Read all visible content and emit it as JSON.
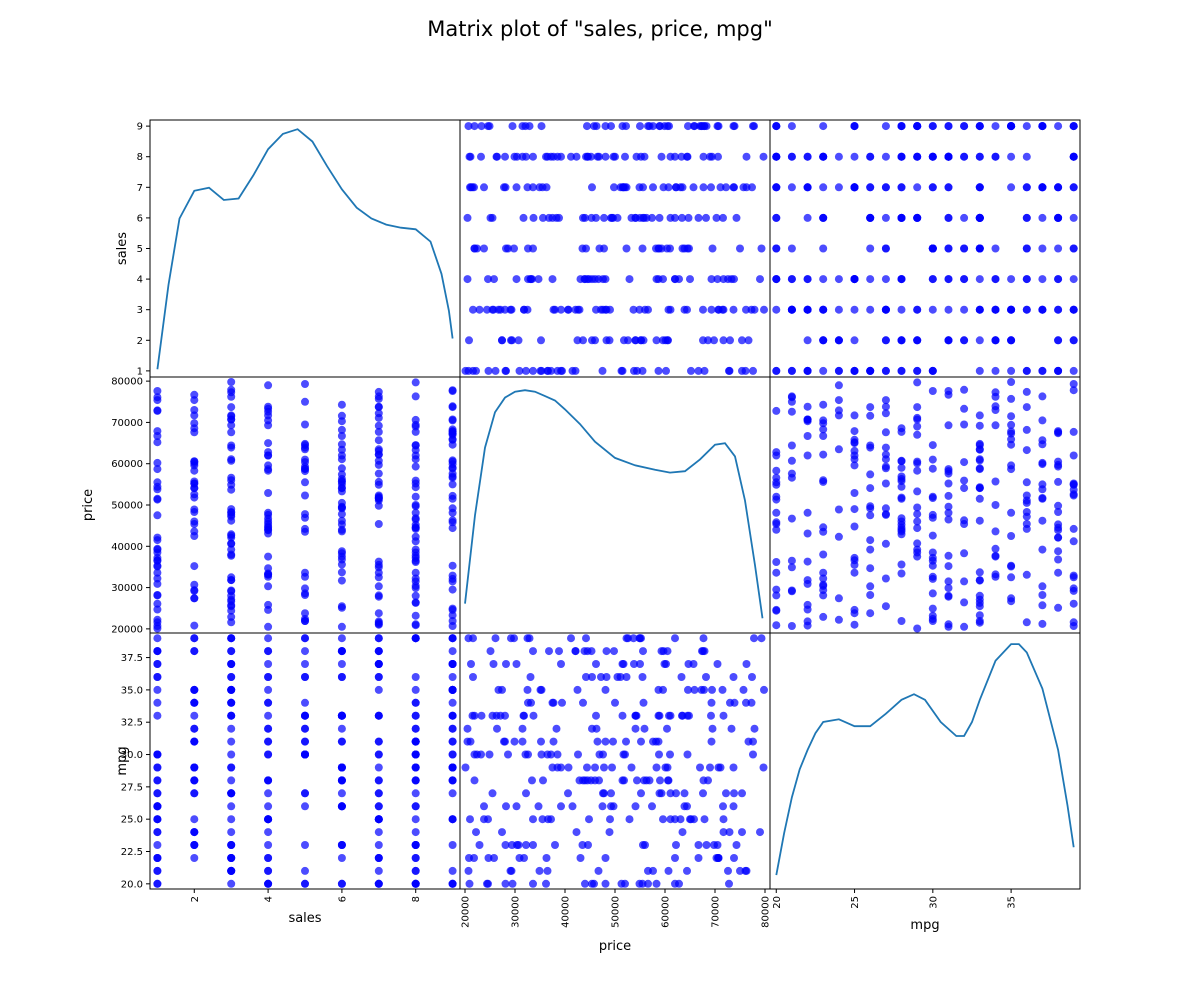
{
  "chart_data": {
    "type": "scatter_matrix",
    "title": "Matrix plot of \"sales, price, mpg\"",
    "variables": [
      "sales",
      "price",
      "mpg"
    ],
    "colors": {
      "points": "#0000ff",
      "kde": "#1f77b4",
      "frame": "#000000"
    },
    "point_alpha": 0.7,
    "grid": false,
    "legend": "none",
    "axes": {
      "sales": {
        "label": "sales",
        "range": [
          0.8,
          9.2
        ],
        "ticks": [
          1,
          2,
          3,
          4,
          5,
          6,
          7,
          8,
          9
        ],
        "bottom_ticks": [
          2,
          4,
          6,
          8
        ],
        "tick_labels": [
          "1",
          "2",
          "3",
          "4",
          "5",
          "6",
          "7",
          "8",
          "9"
        ],
        "bottom_tick_labels": [
          "2",
          "4",
          "6",
          "8"
        ]
      },
      "price": {
        "label": "price",
        "range": [
          19000,
          81000
        ],
        "ticks": [
          20000,
          30000,
          40000,
          50000,
          60000,
          70000,
          80000
        ],
        "tick_labels": [
          "20000",
          "30000",
          "40000",
          "50000",
          "60000",
          "70000",
          "80000"
        ]
      },
      "mpg": {
        "label": "mpg",
        "range": [
          19.6,
          39.4
        ],
        "ticks": [
          20.0,
          22.5,
          25.0,
          27.5,
          30.0,
          32.5,
          35.0,
          37.5
        ],
        "bottom_ticks": [
          20,
          25,
          30,
          35
        ],
        "tick_labels": [
          "20.0",
          "22.5",
          "25.0",
          "27.5",
          "30.0",
          "32.5",
          "35.0",
          "37.5"
        ],
        "bottom_tick_labels": [
          "20",
          "25",
          "30",
          "35"
        ]
      }
    },
    "diagonal_kde": {
      "sales": {
        "x": [
          1.0,
          1.3,
          1.6,
          2.0,
          2.4,
          2.8,
          3.2,
          3.6,
          4.0,
          4.4,
          4.8,
          5.2,
          5.6,
          6.0,
          6.4,
          6.8,
          7.2,
          7.6,
          8.0,
          8.4,
          8.7,
          8.9,
          9.0
        ],
        "y": [
          0.02,
          0.075,
          0.118,
          0.136,
          0.138,
          0.13,
          0.131,
          0.146,
          0.163,
          0.173,
          0.176,
          0.168,
          0.152,
          0.137,
          0.125,
          0.118,
          0.114,
          0.112,
          0.111,
          0.103,
          0.082,
          0.058,
          0.04
        ],
        "yrange": [
          0.015,
          0.182
        ]
      },
      "price": {
        "x": [
          20000,
          22000,
          24000,
          26000,
          28000,
          30000,
          32000,
          34000,
          36000,
          38000,
          40000,
          43000,
          46000,
          50000,
          54000,
          58000,
          61000,
          64000,
          67000,
          70000,
          72000,
          74000,
          76000,
          78000,
          79500
        ],
        "y": [
          0.25,
          0.55,
          0.78,
          0.9,
          0.95,
          0.97,
          0.975,
          0.97,
          0.955,
          0.94,
          0.91,
          0.86,
          0.8,
          0.745,
          0.72,
          0.705,
          0.695,
          0.7,
          0.74,
          0.79,
          0.795,
          0.75,
          0.6,
          0.38,
          0.2
        ],
        "yrange": [
          0.15,
          1.02
        ]
      },
      "mpg": {
        "x": [
          20.0,
          20.5,
          21.0,
          21.5,
          22.0,
          22.5,
          23.0,
          24.0,
          25.0,
          26.0,
          27.0,
          28.0,
          28.8,
          29.5,
          30.5,
          31.5,
          32.0,
          32.5,
          33.0,
          34.0,
          35.0,
          35.5,
          36.0,
          37.0,
          38.0,
          38.6,
          39.0
        ],
        "y": [
          0.05,
          0.2,
          0.33,
          0.43,
          0.5,
          0.56,
          0.6,
          0.61,
          0.585,
          0.585,
          0.63,
          0.68,
          0.7,
          0.68,
          0.6,
          0.55,
          0.55,
          0.6,
          0.68,
          0.82,
          0.88,
          0.88,
          0.85,
          0.72,
          0.5,
          0.3,
          0.15
        ],
        "yrange": [
          0.0,
          0.92
        ]
      }
    }
  }
}
